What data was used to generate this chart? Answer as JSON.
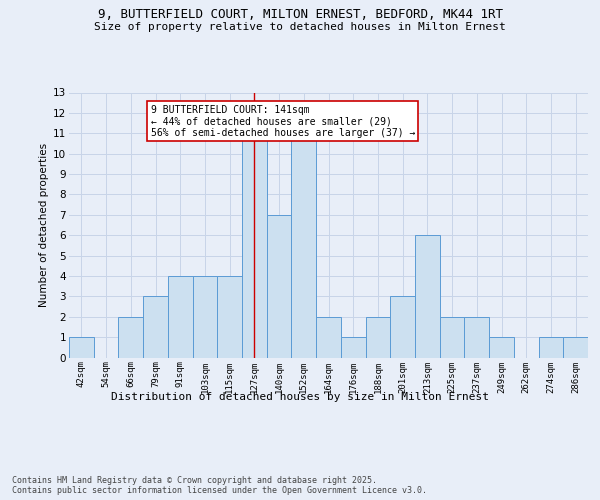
{
  "title": "9, BUTTERFIELD COURT, MILTON ERNEST, BEDFORD, MK44 1RT",
  "subtitle": "Size of property relative to detached houses in Milton Ernest",
  "xlabel": "Distribution of detached houses by size in Milton Ernest",
  "ylabel": "Number of detached properties",
  "bin_labels": [
    "42sqm",
    "54sqm",
    "66sqm",
    "79sqm",
    "91sqm",
    "103sqm",
    "115sqm",
    "127sqm",
    "140sqm",
    "152sqm",
    "164sqm",
    "176sqm",
    "188sqm",
    "201sqm",
    "213sqm",
    "225sqm",
    "237sqm",
    "249sqm",
    "262sqm",
    "274sqm",
    "286sqm"
  ],
  "bar_heights": [
    1,
    0,
    2,
    3,
    4,
    4,
    4,
    11,
    7,
    11,
    2,
    1,
    2,
    3,
    6,
    2,
    2,
    1,
    0,
    1,
    1
  ],
  "bar_color": "#cce0f0",
  "bar_edge_color": "#5b9bd5",
  "vline_x_index": 7,
  "vline_color": "#cc0000",
  "annotation_text": "9 BUTTERFIELD COURT: 141sqm\n← 44% of detached houses are smaller (29)\n56% of semi-detached houses are larger (37) →",
  "annotation_box_color": "#ffffff",
  "annotation_box_edge": "#cc0000",
  "footer_text": "Contains HM Land Registry data © Crown copyright and database right 2025.\nContains public sector information licensed under the Open Government Licence v3.0.",
  "ylim": [
    0,
    13
  ],
  "yticks": [
    0,
    1,
    2,
    3,
    4,
    5,
    6,
    7,
    8,
    9,
    10,
    11,
    12,
    13
  ],
  "background_color": "#e8eef8",
  "grid_color": "#c8d4e8"
}
